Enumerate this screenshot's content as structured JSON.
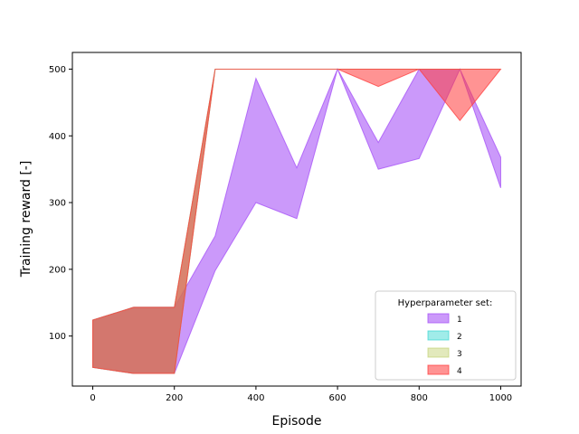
{
  "chart_data": {
    "type": "area",
    "xlabel": "Episode",
    "ylabel": "Training reward [-]",
    "xlim": [
      -50,
      1050
    ],
    "ylim": [
      25,
      525
    ],
    "xticks": [
      0,
      200,
      400,
      600,
      800,
      1000
    ],
    "yticks": [
      100,
      200,
      300,
      400,
      500
    ],
    "grid": false,
    "legend": {
      "title": "Hyperparameter set:",
      "position": "lower-right"
    },
    "series": [
      {
        "name": "1",
        "color": "#a855f7",
        "alpha": 0.6,
        "x": [
          0,
          100,
          200,
          300,
          400,
          500,
          600,
          700,
          800,
          900,
          1000
        ],
        "upper": [
          124,
          143,
          143,
          250,
          486,
          352,
          500,
          390,
          500,
          500,
          368
        ],
        "lower": [
          53,
          44,
          44,
          198,
          300,
          276,
          500,
          350,
          366,
          500,
          322
        ]
      },
      {
        "name": "2",
        "color": "#2dd4cf",
        "alpha": 0.45,
        "x": [
          0,
          100,
          200,
          300,
          400,
          500,
          600,
          700,
          800,
          900,
          1000
        ],
        "upper": [
          124,
          143,
          143,
          500,
          500,
          500,
          500,
          500,
          500,
          500,
          500
        ],
        "lower": [
          53,
          44,
          44,
          500,
          500,
          500,
          500,
          500,
          500,
          500,
          500
        ]
      },
      {
        "name": "3",
        "color": "#bfcf6a",
        "alpha": 0.45,
        "x": [
          0,
          100,
          200,
          300,
          400,
          500,
          600,
          700,
          800,
          900,
          1000
        ],
        "upper": [
          124,
          143,
          143,
          500,
          500,
          500,
          500,
          500,
          500,
          500,
          500
        ],
        "lower": [
          53,
          44,
          44,
          500,
          500,
          500,
          500,
          500,
          500,
          500,
          500
        ]
      },
      {
        "name": "4",
        "color": "#ff3b3b",
        "alpha": 0.55,
        "x": [
          0,
          100,
          200,
          300,
          400,
          500,
          600,
          700,
          800,
          900,
          1000
        ],
        "upper": [
          124,
          143,
          143,
          500,
          500,
          500,
          500,
          500,
          500,
          500,
          500
        ],
        "lower": [
          53,
          44,
          44,
          500,
          500,
          500,
          500,
          474,
          500,
          423,
          500
        ]
      }
    ]
  }
}
